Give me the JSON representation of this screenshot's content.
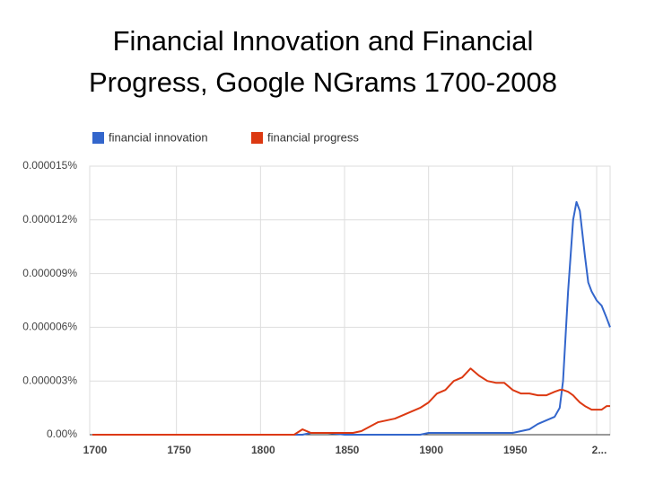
{
  "chart_data": {
    "type": "line",
    "title": [
      "Financial Innovation and Financial",
      "Progress,  Google NGrams 1700-2008"
    ],
    "x": [
      1700,
      1750,
      1800,
      1820,
      1825,
      1830,
      1840,
      1850,
      1855,
      1860,
      1870,
      1880,
      1890,
      1895,
      1900,
      1905,
      1910,
      1915,
      1920,
      1925,
      1930,
      1935,
      1940,
      1945,
      1950,
      1955,
      1960,
      1965,
      1970,
      1975,
      1978,
      1980,
      1983,
      1986,
      1988,
      1990,
      1993,
      1995,
      1997,
      2000,
      2003,
      2006,
      2008
    ],
    "series": [
      {
        "name": "financial innovation",
        "color": "#3366cc",
        "values": [
          0,
          0,
          0,
          0,
          0,
          1e-07,
          1e-07,
          0,
          0,
          0,
          0,
          0,
          0,
          0,
          1e-07,
          1e-07,
          1e-07,
          1e-07,
          1e-07,
          1e-07,
          1e-07,
          1e-07,
          1e-07,
          1e-07,
          1e-07,
          2e-07,
          3e-07,
          6e-07,
          8e-07,
          1e-06,
          1.5e-06,
          3e-06,
          8e-06,
          1.2e-05,
          1.3e-05,
          1.25e-05,
          1e-05,
          8.5e-06,
          8e-06,
          7.5e-06,
          7.2e-06,
          6.5e-06,
          6e-06
        ]
      },
      {
        "name": "financial progress",
        "color": "#dc3912",
        "values": [
          0,
          0,
          0,
          0,
          3e-07,
          1e-07,
          1e-07,
          1e-07,
          1e-07,
          2e-07,
          7e-07,
          9e-07,
          1.3e-06,
          1.5e-06,
          1.8e-06,
          2.3e-06,
          2.5e-06,
          3e-06,
          3.2e-06,
          3.7e-06,
          3.3e-06,
          3e-06,
          2.9e-06,
          2.9e-06,
          2.5e-06,
          2.3e-06,
          2.3e-06,
          2.2e-06,
          2.2e-06,
          2.4e-06,
          2.5e-06,
          2.5e-06,
          2.4e-06,
          2.2e-06,
          2e-06,
          1.8e-06,
          1.6e-06,
          1.5e-06,
          1.4e-06,
          1.4e-06,
          1.4e-06,
          1.6e-06,
          1.6e-06
        ]
      }
    ],
    "xlim": [
      1700,
      2008
    ],
    "xticks": [
      1700,
      1750,
      1800,
      1850,
      1900,
      1950,
      {
        "value": 2000,
        "label": "2..."
      }
    ],
    "ylim": [
      0,
      1.5e-05
    ],
    "yticks": [
      {
        "value": 0,
        "label": "0.00%"
      },
      {
        "value": 3e-06,
        "label": "0.000003%"
      },
      {
        "value": 6e-06,
        "label": "0.000006%"
      },
      {
        "value": 9e-06,
        "label": "0.000009%"
      },
      {
        "value": 1.2e-05,
        "label": "0.000012%"
      },
      {
        "value": 1.5e-05,
        "label": "0.000015%"
      }
    ],
    "grid": true,
    "legend": "top"
  }
}
